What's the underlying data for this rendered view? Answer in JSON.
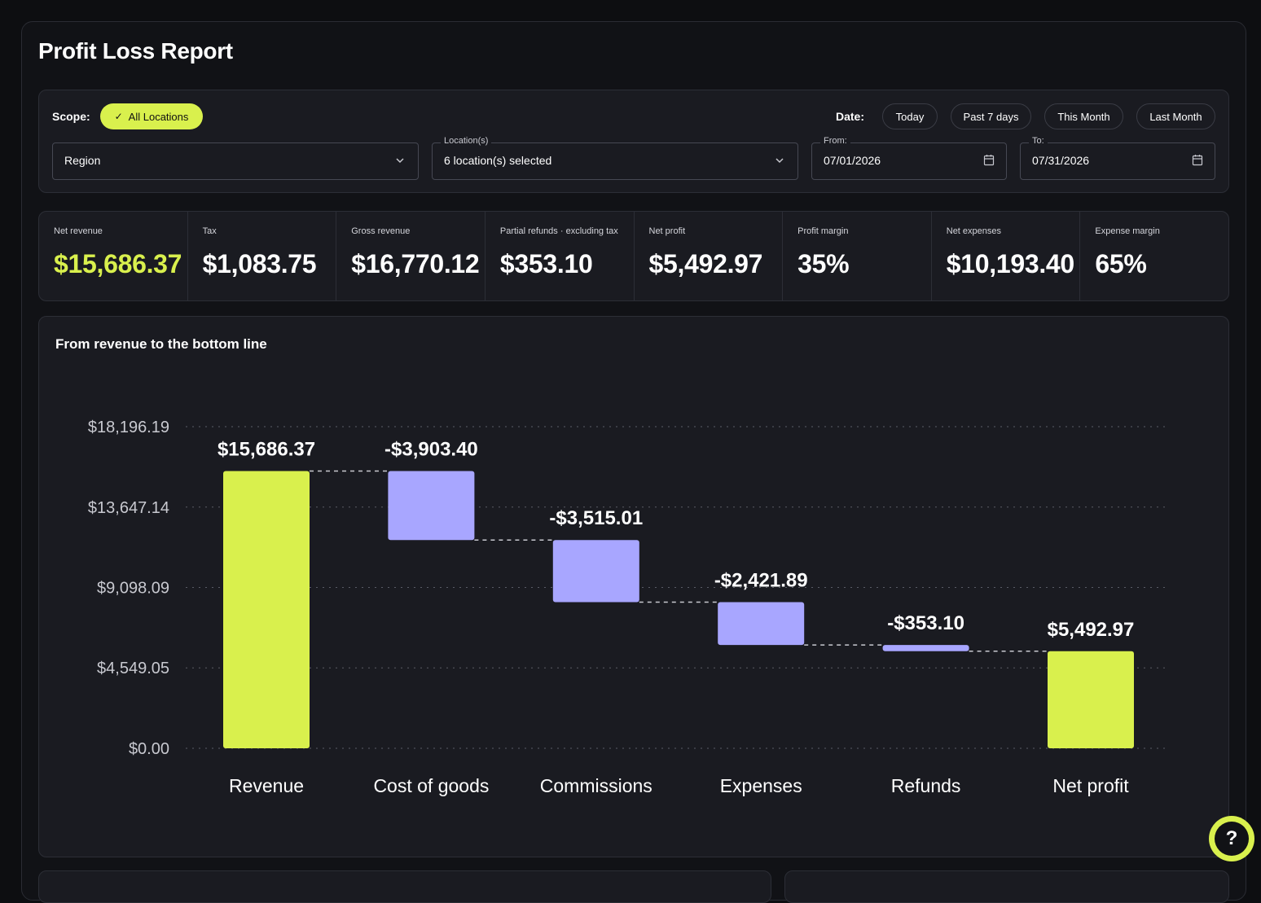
{
  "page": {
    "title": "Profit Loss Report"
  },
  "filters": {
    "scope_label": "Scope:",
    "scope_chip": "All Locations",
    "date_label": "Date:",
    "date_buttons": [
      "Today",
      "Past 7 days",
      "This Month",
      "Last Month"
    ],
    "region": {
      "value": "Region"
    },
    "locations": {
      "legend": "Location(s)",
      "value": "6 location(s) selected"
    },
    "from": {
      "legend": "From:",
      "value": "07/01/2026"
    },
    "to": {
      "legend": "To:",
      "value": "07/31/2026"
    }
  },
  "kpis": [
    {
      "label": "Net revenue",
      "value": "$15,686.37"
    },
    {
      "label": "Tax",
      "value": "$1,083.75"
    },
    {
      "label": "Gross revenue",
      "value": "$16,770.12"
    },
    {
      "label": "Partial refunds · excluding tax",
      "value": "$353.10"
    },
    {
      "label": "Net profit",
      "value": "$5,492.97"
    },
    {
      "label": "Profit margin",
      "value": "35%"
    },
    {
      "label": "Net expenses",
      "value": "$10,193.40"
    },
    {
      "label": "Expense margin",
      "value": "65%"
    }
  ],
  "colors": {
    "accent": "#d9f04d",
    "decrease": "#a8a6ff",
    "card": "#1a1b21",
    "grid": "#5a5c66"
  },
  "chart_title": "From revenue to the bottom line",
  "chart_data": {
    "type": "waterfall",
    "title": "From revenue to the bottom line",
    "categories": [
      "Revenue",
      "Cost of goods",
      "Commissions",
      "Expenses",
      "Refunds",
      "Net profit"
    ],
    "values": [
      15686.37,
      -3903.4,
      -3515.01,
      -2421.89,
      -353.1,
      5492.97
    ],
    "value_labels": [
      "$15,686.37",
      "-$3,903.40",
      "-$3,515.01",
      "-$2,421.89",
      "-$353.10",
      "$5,492.97"
    ],
    "kinds": [
      "total",
      "decrease",
      "decrease",
      "decrease",
      "decrease",
      "total"
    ],
    "y_ticks": [
      0,
      4549.05,
      9098.09,
      13647.14,
      18196.19
    ],
    "y_tick_labels": [
      "$0.00",
      "$4,549.05",
      "$9,098.09",
      "$13,647.14",
      "$18,196.19"
    ],
    "ylim": [
      0,
      18196.19
    ],
    "grid": true,
    "connectors": true
  },
  "help_icon": "question-circle-icon",
  "help_text": "?"
}
